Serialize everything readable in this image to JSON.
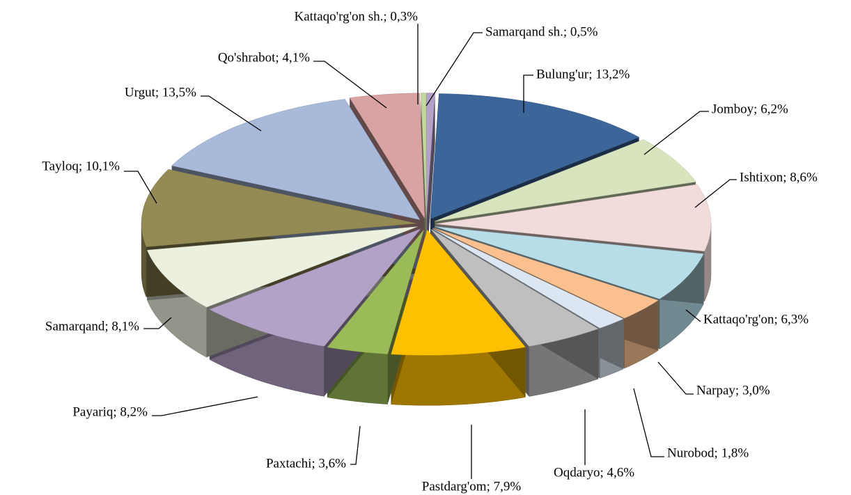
{
  "chart_data": {
    "type": "pie3d",
    "values": [
      0.5,
      13.2,
      6.2,
      8.6,
      6.3,
      3.0,
      1.8,
      4.6,
      7.9,
      3.6,
      8.2,
      8.1,
      10.1,
      13.5,
      4.1,
      0.3
    ],
    "value_labels": [
      "Samarqand sh.; 0,5%",
      "Bulung'ur; 13,2%",
      "Jomboy; 6,2%",
      "Ishtixon; 8,6%",
      "Kattaqo'rg'on; 6,3%",
      "Narpay; 3,0%",
      "Nurobod; 1,8%",
      "Oqdaryo; 4,6%",
      "Pastdarg'om; 7,9%",
      "Paxtachi; 3,6%",
      "Payariq; 8,2%",
      "Samarqand; 8,1%",
      "Tayloq; 10,1%",
      "Urgut; 13,5%",
      "Qo'shrabot; 4,1%",
      "Kattaqo'rg'on sh.; 0,3%"
    ],
    "colors": [
      "#b3a2c7",
      "#3c6699",
      "#d7e4bd",
      "#f2dcdb",
      "#b7dde8",
      "#fac090",
      "#dce6f2",
      "#bfbfbf",
      "#ffc000",
      "#9bbb59",
      "#b3a2c7",
      "#ebf1de",
      "#948a54",
      "#a9b9d9",
      "#d9a3a3",
      "#c3d69b"
    ]
  }
}
